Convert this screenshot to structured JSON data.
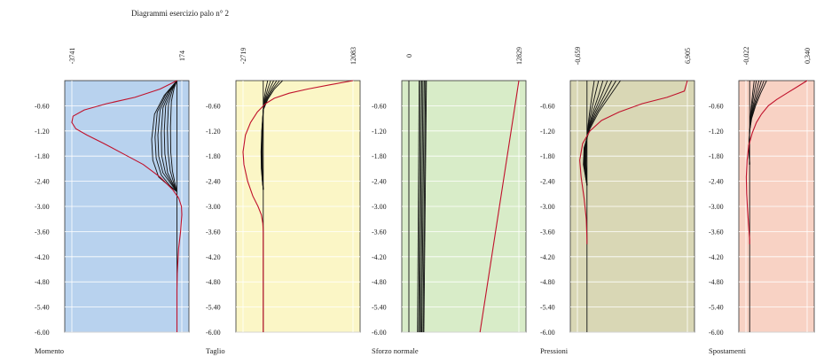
{
  "title": "Diagrammi esercizio palo n° 2",
  "chart_data": [
    {
      "type": "line",
      "xlabel": "Momento",
      "ylabel": "",
      "xlim": [
        -3741,
        174
      ],
      "x_tick_labels": [
        "-3741",
        "174"
      ],
      "ylim": [
        -6.0,
        0.0
      ],
      "y_ticks": [
        -0.6,
        -1.2,
        -1.8,
        -2.4,
        -3.0,
        -3.6,
        -4.2,
        -4.8,
        -5.4,
        -6.0
      ],
      "y_tick_labels": [
        "-0.60",
        "-1.20",
        "-1.80",
        "-2.40",
        "-3.00",
        "-3.60",
        "-4.20",
        "-4.80",
        "-5.40",
        "-6.00"
      ],
      "background_color": "#b8d2ee",
      "grid": true,
      "envelope": {
        "color": "#c0112b",
        "x": [
          0,
          -600,
          -1500,
          -2500,
          -3300,
          -3700,
          -3741,
          -3600,
          -3200,
          -2600,
          -1900,
          -1200,
          -600,
          -150,
          60,
          160,
          174,
          130,
          60,
          10,
          0,
          0
        ],
        "y": [
          0.0,
          -0.2,
          -0.4,
          -0.55,
          -0.7,
          -0.85,
          -1.0,
          -1.15,
          -1.3,
          -1.5,
          -1.75,
          -2.0,
          -2.3,
          -2.6,
          -2.8,
          -3.0,
          -3.2,
          -3.6,
          -4.0,
          -4.6,
          -5.0,
          -6.0
        ]
      },
      "series": [
        {
          "x": [
            0,
            -450,
            -800,
            -900,
            -860,
            -650,
            -300,
            0
          ],
          "y": [
            0.0,
            -0.35,
            -0.8,
            -1.4,
            -1.9,
            -2.3,
            -2.5,
            -2.65
          ]
        },
        {
          "x": [
            0,
            -380,
            -700,
            -780,
            -740,
            -560,
            -260,
            0
          ],
          "y": [
            0.0,
            -0.3,
            -0.75,
            -1.35,
            -1.85,
            -2.25,
            -2.5,
            -2.65
          ]
        },
        {
          "x": [
            0,
            -320,
            -600,
            -680,
            -650,
            -500,
            -230,
            0
          ],
          "y": [
            0.0,
            -0.28,
            -0.7,
            -1.3,
            -1.8,
            -2.2,
            -2.45,
            -2.65
          ]
        },
        {
          "x": [
            0,
            -260,
            -500,
            -560,
            -540,
            -410,
            -190,
            0
          ],
          "y": [
            0.0,
            -0.25,
            -0.65,
            -1.25,
            -1.8,
            -2.2,
            -2.45,
            -2.65
          ]
        },
        {
          "x": [
            0,
            -200,
            -400,
            -450,
            -430,
            -330,
            -150,
            0
          ],
          "y": [
            0.0,
            -0.22,
            -0.6,
            -1.2,
            -1.75,
            -2.2,
            -2.45,
            -2.65
          ]
        },
        {
          "x": [
            0,
            -150,
            -300,
            -340,
            -320,
            -240,
            -110,
            0
          ],
          "y": [
            0.0,
            -0.2,
            -0.55,
            -1.15,
            -1.7,
            -2.15,
            -2.45,
            -2.65
          ]
        },
        {
          "x": [
            0,
            -100,
            -200,
            -230,
            -220,
            -160,
            -70,
            0
          ],
          "y": [
            0.0,
            -0.18,
            -0.5,
            -1.1,
            -1.7,
            -2.15,
            -2.45,
            -2.65
          ]
        },
        {
          "x": [
            0,
            0
          ],
          "y": [
            0.0,
            -6.0
          ]
        }
      ]
    },
    {
      "type": "line",
      "xlabel": "Taglio",
      "ylabel": "",
      "xlim": [
        -2719,
        12083
      ],
      "x_tick_labels": [
        "-2719",
        "12083"
      ],
      "ylim": [
        -6.0,
        0.0
      ],
      "y_ticks": [
        -0.6,
        -1.2,
        -1.8,
        -2.4,
        -3.0,
        -3.6,
        -4.2,
        -4.8,
        -5.4,
        -6.0
      ],
      "y_tick_labels": [
        "-0.60",
        "-1.20",
        "-1.80",
        "-2.40",
        "-3.00",
        "-3.60",
        "-4.20",
        "-4.80",
        "-5.40",
        "-6.00"
      ],
      "background_color": "#fbf6c6",
      "grid": true,
      "envelope": {
        "color": "#c0112b",
        "x": [
          12083,
          9000,
          6000,
          3500,
          1500,
          300,
          -800,
          -1700,
          -2400,
          -2719,
          -2600,
          -2100,
          -1400,
          -700,
          -250,
          -60,
          0,
          0
        ],
        "y": [
          0.0,
          -0.1,
          -0.2,
          -0.3,
          -0.42,
          -0.55,
          -0.75,
          -1.0,
          -1.3,
          -1.7,
          -2.0,
          -2.4,
          -2.75,
          -3.0,
          -3.2,
          -3.4,
          -3.6,
          -6.0
        ]
      },
      "series": [
        {
          "x": [
            2600,
            1500,
            600,
            0,
            -200,
            -300,
            -260,
            -120,
            0
          ],
          "y": [
            0.0,
            -0.2,
            -0.45,
            -0.7,
            -1.2,
            -1.7,
            -2.1,
            -2.4,
            -2.6
          ]
        },
        {
          "x": [
            2200,
            1300,
            500,
            0,
            -180,
            -260,
            -230,
            -100,
            0
          ],
          "y": [
            0.0,
            -0.2,
            -0.45,
            -0.7,
            -1.2,
            -1.7,
            -2.1,
            -2.4,
            -2.6
          ]
        },
        {
          "x": [
            1800,
            1100,
            400,
            0,
            -160,
            -230,
            -200,
            -90,
            0
          ],
          "y": [
            0.0,
            -0.2,
            -0.45,
            -0.7,
            -1.2,
            -1.7,
            -2.1,
            -2.4,
            -2.6
          ]
        },
        {
          "x": [
            1400,
            850,
            300,
            0,
            -140,
            -200,
            -170,
            -80,
            0
          ],
          "y": [
            0.0,
            -0.2,
            -0.45,
            -0.7,
            -1.2,
            -1.7,
            -2.1,
            -2.4,
            -2.6
          ]
        },
        {
          "x": [
            1000,
            600,
            200,
            0,
            -120,
            -170,
            -140,
            -60,
            0
          ],
          "y": [
            0.0,
            -0.2,
            -0.45,
            -0.7,
            -1.2,
            -1.7,
            -2.1,
            -2.4,
            -2.6
          ]
        },
        {
          "x": [
            600,
            350,
            100,
            0,
            -90,
            -130,
            -110,
            -50,
            0
          ],
          "y": [
            0.0,
            -0.2,
            -0.45,
            -0.7,
            -1.2,
            -1.7,
            -2.1,
            -2.4,
            -2.6
          ]
        },
        {
          "x": [
            0,
            0
          ],
          "y": [
            0.0,
            -6.0
          ]
        }
      ]
    },
    {
      "type": "line",
      "xlabel": "Sforzo normale",
      "ylabel": "",
      "xlim": [
        0,
        12829
      ],
      "x_tick_labels": [
        "0",
        "12829"
      ],
      "ylim": [
        -6.0,
        0.0
      ],
      "y_ticks": [
        -0.6,
        -1.2,
        -1.8,
        -2.4,
        -3.0,
        -3.6,
        -4.2,
        -4.8,
        -5.4,
        -6.0
      ],
      "y_tick_labels": [
        "-0.60",
        "-1.20",
        "-1.80",
        "-2.40",
        "-3.00",
        "-3.60",
        "-4.20",
        "-4.80",
        "-5.40",
        "-6.00"
      ],
      "background_color": "#d8ecc8",
      "grid": true,
      "envelope": {
        "color": "#c0112b",
        "x": [
          12829,
          8300
        ],
        "y": [
          0.0,
          -6.0
        ]
      },
      "series": [
        {
          "x": [
            0,
            0
          ],
          "y": [
            0.0,
            -6.0
          ]
        },
        {
          "x": [
            2050,
            1750
          ],
          "y": [
            0.0,
            -6.0
          ]
        },
        {
          "x": [
            1950,
            1650
          ],
          "y": [
            0.0,
            -6.0
          ]
        },
        {
          "x": [
            1800,
            1500
          ],
          "y": [
            0.0,
            -6.0
          ]
        },
        {
          "x": [
            1650,
            1400
          ],
          "y": [
            0.0,
            -6.0
          ]
        },
        {
          "x": [
            1500,
            1250
          ],
          "y": [
            0.0,
            -6.0
          ]
        },
        {
          "x": [
            1350,
            1150
          ],
          "y": [
            0.0,
            -6.0
          ]
        },
        {
          "x": [
            1200,
            1000
          ],
          "y": [
            0.0,
            -6.0
          ]
        }
      ]
    },
    {
      "type": "line",
      "xlabel": "Pressioni",
      "ylabel": "",
      "xlim": [
        -0.659,
        6.905
      ],
      "x_tick_labels": [
        "-0,659",
        "6,905"
      ],
      "ylim": [
        -6.0,
        0.0
      ],
      "y_ticks": [
        -0.6,
        -1.2,
        -1.8,
        -2.4,
        -3.0,
        -3.6,
        -4.2,
        -4.8,
        -5.4,
        -6.0
      ],
      "y_tick_labels": [
        "-0.60",
        "-1.20",
        "-1.80",
        "-2.40",
        "-3.00",
        "-3.60",
        "-4.20",
        "-4.80",
        "-5.40",
        "-6.00"
      ],
      "background_color": "#d9d7b5",
      "grid": true,
      "envelope": {
        "color": "#c0112b",
        "x": [
          6.905,
          6.7,
          5.5,
          3.8,
          2.2,
          1.0,
          0.2,
          -0.3,
          -0.5,
          -0.4,
          -0.2,
          -0.05,
          0.0,
          0.0
        ],
        "y": [
          0.0,
          -0.25,
          -0.4,
          -0.55,
          -0.75,
          -0.95,
          -1.2,
          -1.5,
          -1.9,
          -2.3,
          -2.8,
          -3.3,
          -3.8,
          -3.9
        ]
      },
      "series": [
        {
          "x": [
            2.3,
            1.6,
            0.8,
            0.2,
            -0.2,
            -0.25,
            -0.1,
            0.0
          ],
          "y": [
            0.0,
            -0.35,
            -0.75,
            -1.15,
            -1.6,
            -2.0,
            -2.3,
            -2.5
          ]
        },
        {
          "x": [
            2.0,
            1.4,
            0.7,
            0.15,
            -0.18,
            -0.22,
            -0.09,
            0.0
          ],
          "y": [
            0.0,
            -0.35,
            -0.75,
            -1.15,
            -1.6,
            -2.0,
            -2.3,
            -2.5
          ]
        },
        {
          "x": [
            1.7,
            1.2,
            0.6,
            0.12,
            -0.15,
            -0.19,
            -0.08,
            0.0
          ],
          "y": [
            0.0,
            -0.35,
            -0.75,
            -1.15,
            -1.6,
            -2.0,
            -2.3,
            -2.5
          ]
        },
        {
          "x": [
            1.4,
            1.0,
            0.5,
            0.1,
            -0.12,
            -0.16,
            -0.07,
            0.0
          ],
          "y": [
            0.0,
            -0.35,
            -0.75,
            -1.15,
            -1.6,
            -2.0,
            -2.3,
            -2.5
          ]
        },
        {
          "x": [
            1.1,
            0.8,
            0.4,
            0.08,
            -0.1,
            -0.13,
            -0.05,
            0.0
          ],
          "y": [
            0.0,
            -0.35,
            -0.75,
            -1.15,
            -1.6,
            -2.0,
            -2.3,
            -2.5
          ]
        },
        {
          "x": [
            0.8,
            0.55,
            0.28,
            0.06,
            -0.07,
            -0.09,
            -0.04,
            0.0
          ],
          "y": [
            0.0,
            -0.35,
            -0.75,
            -1.15,
            -1.6,
            -2.0,
            -2.3,
            -2.5
          ]
        },
        {
          "x": [
            0.5,
            0.35,
            0.18,
            0.04,
            -0.05,
            -0.06,
            -0.02,
            0.0
          ],
          "y": [
            0.0,
            -0.35,
            -0.75,
            -1.15,
            -1.6,
            -2.0,
            -2.3,
            -2.5
          ]
        },
        {
          "x": [
            0,
            0
          ],
          "y": [
            0.0,
            -6.0
          ]
        }
      ]
    },
    {
      "type": "line",
      "xlabel": "Spostamenti",
      "ylabel": "",
      "xlim": [
        -0.022,
        0.34
      ],
      "x_tick_labels": [
        "-0,022",
        "0,340"
      ],
      "ylim": [
        -6.0,
        0.0
      ],
      "y_ticks": [
        -0.6,
        -1.2,
        -1.8,
        -2.4,
        -3.0,
        -3.6,
        -4.2,
        -4.8,
        -5.4,
        -6.0
      ],
      "y_tick_labels": [
        "-0.60",
        "-1.20",
        "-1.80",
        "-2.40",
        "-3.00",
        "-3.60",
        "-4.20",
        "-4.80",
        "-5.40",
        "-6.00"
      ],
      "background_color": "#f8d2c4",
      "grid": true,
      "envelope": {
        "color": "#c0112b",
        "x": [
          0.34,
          0.28,
          0.22,
          0.16,
          0.11,
          0.07,
          0.04,
          0.015,
          -0.005,
          -0.015,
          -0.02,
          -0.018,
          -0.012,
          -0.005,
          0.0,
          0.0
        ],
        "y": [
          0.0,
          -0.15,
          -0.3,
          -0.45,
          -0.6,
          -0.8,
          -1.0,
          -1.25,
          -1.55,
          -1.9,
          -2.3,
          -2.7,
          -3.1,
          -3.5,
          -3.8,
          -3.9
        ]
      },
      "series": [
        {
          "x": [
            0.1,
            0.065,
            0.035,
            0.012,
            0.0,
            -0.005,
            0.0
          ],
          "y": [
            0.0,
            -0.3,
            -0.6,
            -0.9,
            -1.2,
            -1.6,
            -2.0
          ]
        },
        {
          "x": [
            0.085,
            0.056,
            0.03,
            0.01,
            0.0,
            -0.005,
            0.0
          ],
          "y": [
            0.0,
            -0.3,
            -0.6,
            -0.9,
            -1.2,
            -1.6,
            -2.0
          ]
        },
        {
          "x": [
            0.07,
            0.046,
            0.025,
            0.008,
            0.0,
            -0.004,
            0.0
          ],
          "y": [
            0.0,
            -0.3,
            -0.6,
            -0.9,
            -1.2,
            -1.6,
            -2.0
          ]
        },
        {
          "x": [
            0.055,
            0.036,
            0.02,
            0.006,
            0.0,
            -0.003,
            0.0
          ],
          "y": [
            0.0,
            -0.3,
            -0.6,
            -0.9,
            -1.2,
            -1.6,
            -2.0
          ]
        },
        {
          "x": [
            0.04,
            0.026,
            0.014,
            0.005,
            0.0,
            -0.003,
            0.0
          ],
          "y": [
            0.0,
            -0.3,
            -0.6,
            -0.9,
            -1.2,
            -1.6,
            -2.0
          ]
        },
        {
          "x": [
            0.027,
            0.018,
            0.01,
            0.003,
            0.0,
            -0.002,
            0.0
          ],
          "y": [
            0.0,
            -0.3,
            -0.6,
            -0.9,
            -1.2,
            -1.6,
            -2.0
          ]
        },
        {
          "x": [
            0,
            0
          ],
          "y": [
            0.0,
            -6.0
          ]
        }
      ]
    }
  ]
}
